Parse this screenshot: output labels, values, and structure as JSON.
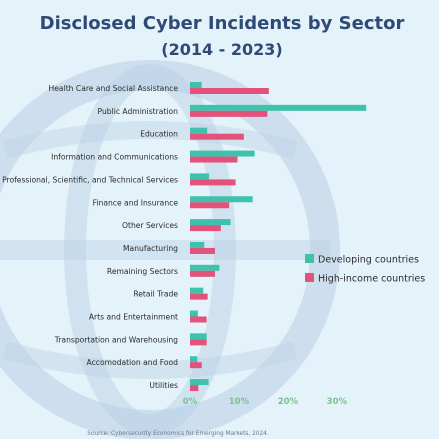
{
  "colors": {
    "background": "#e4f2fa",
    "title": "#2f4a77",
    "developing": "#3fc2ad",
    "high_income": "#e2527a",
    "tick_label": "#7cc08e",
    "category_label": "#2b2b2b",
    "source": "#6a7a90",
    "watermark": "#b9cfe4"
  },
  "chart_data": {
    "type": "bar",
    "orientation": "horizontal",
    "title": "Disclosed Cyber Incidents by Sector",
    "subtitle": "(2014 - 2023)",
    "categories": [
      "Health Care and Social Assistance",
      "Public Administration",
      "Education",
      "Information and Communications",
      "Professional, Scientific, and Technical Services",
      "Finance and Insurance",
      "Other Services",
      "Manufacturing",
      "Remaining Sectors",
      "Retail Trade",
      "Arts and Entertainment",
      "Transportation and Warehousing",
      "Accomodation and Food",
      "Utilities"
    ],
    "series": [
      {
        "name": "Developing countries",
        "color": "#3fc2ad",
        "values": [
          2.4,
          36.0,
          3.5,
          13.2,
          3.9,
          12.8,
          8.3,
          2.9,
          6.0,
          2.7,
          1.6,
          3.4,
          1.5,
          3.8
        ]
      },
      {
        "name": "High-income countries",
        "color": "#e2527a",
        "values": [
          16.1,
          15.8,
          11.0,
          9.7,
          9.3,
          8.0,
          6.3,
          5.1,
          5.1,
          3.6,
          3.4,
          3.4,
          2.4,
          1.7
        ]
      }
    ],
    "xticks": [
      "0%",
      "10%",
      "20%",
      "30%"
    ],
    "xlim": [
      0,
      38
    ],
    "xlabel": "",
    "ylabel": "",
    "grid": false,
    "legend_position": "right",
    "source": "Source: Cybersecurity Economics for Emerging Markets, 2024."
  }
}
